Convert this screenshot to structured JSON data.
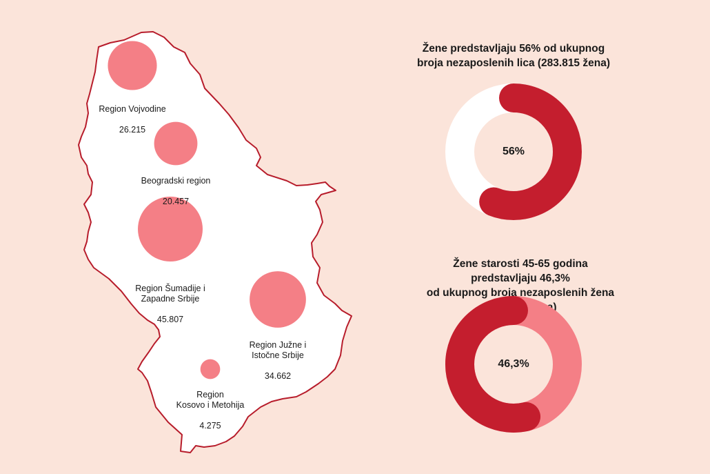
{
  "colors": {
    "background": "#fbe4da",
    "map_fill": "#ffffff",
    "map_border": "#b71c2b",
    "bubble": "#f47f86",
    "donut_primary": "#c41e2e",
    "donut_secondary_white": "#ffffff",
    "donut_secondary_pink": "#f47f86"
  },
  "regions": [
    {
      "name": "Region Vojvodine",
      "value": "26.215",
      "amount": 26215
    },
    {
      "name": "Beogradski region",
      "value": "20.457",
      "amount": 20457
    },
    {
      "name": "Region Šumadije i\nZapadne Srbije",
      "value": "45.807",
      "amount": 45807
    },
    {
      "name": "Region Južne i\nIstočne Srbije",
      "value": "34.662",
      "amount": 34662
    },
    {
      "name": "Region\nKosovo i Metohija",
      "value": "4.275",
      "amount": 4275
    }
  ],
  "donuts": [
    {
      "title": "Žene predstavljaju 56% od ukupnog\nbroja nezaposlenih lica (283.815 žena)",
      "label": "56%",
      "percent": 56,
      "rest_color": "#ffffff"
    },
    {
      "title": "Žene starosti 45-65 godina predstavljaju 46,3%\nod ukupnog broja nezaposlenih žena (131.416 žena)",
      "label": "46,3%",
      "percent": 46.3,
      "rest_color": "#f47f86"
    }
  ]
}
